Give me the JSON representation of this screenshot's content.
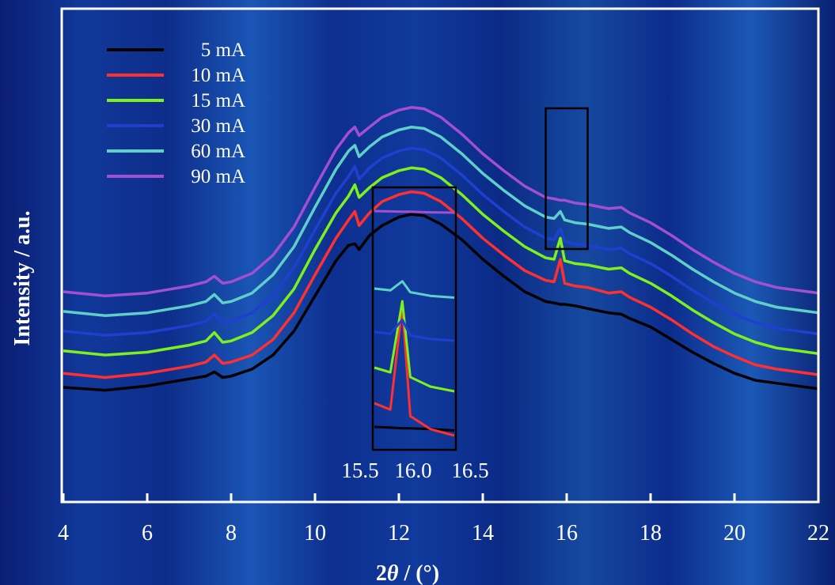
{
  "chart_data": {
    "type": "line",
    "xlabel_prefix": "2",
    "xlabel_theta": "θ",
    "xlabel_unit": " / (°)",
    "ylabel": "Intensity / a.u.",
    "xlim": [
      4,
      22
    ],
    "x_ticks": [
      4,
      6,
      8,
      10,
      12,
      14,
      16,
      18,
      20,
      22
    ],
    "x_tick_labels": [
      "4",
      "6",
      "8",
      "10",
      "12",
      "14",
      "16",
      "18",
      "20",
      "22"
    ],
    "grid": false,
    "legend_position": "top-left",
    "series": [
      {
        "name": "5 mA",
        "color": "#000000",
        "x": [
          4,
          5,
          6,
          7,
          7.4,
          7.6,
          7.8,
          8,
          8.5,
          9,
          9.5,
          10,
          10.5,
          10.8,
          10.95,
          11.05,
          11.3,
          11.6,
          12,
          12.3,
          12.6,
          13,
          13.5,
          14,
          14.5,
          15,
          15.5,
          15.7,
          15.85,
          15.95,
          16.2,
          16.5,
          17,
          17.3,
          17.5,
          18,
          18.5,
          19,
          19.5,
          20,
          20.5,
          21,
          21.5,
          22
        ],
        "y": [
          0.0,
          -0.02,
          0.01,
          0.06,
          0.08,
          0.11,
          0.07,
          0.08,
          0.13,
          0.23,
          0.4,
          0.65,
          0.9,
          1.01,
          1.02,
          0.98,
          1.08,
          1.15,
          1.21,
          1.23,
          1.22,
          1.16,
          1.05,
          0.91,
          0.79,
          0.68,
          0.61,
          0.6,
          0.59,
          0.59,
          0.58,
          0.56,
          0.53,
          0.52,
          0.49,
          0.43,
          0.34,
          0.25,
          0.17,
          0.1,
          0.05,
          0.03,
          0.01,
          -0.01
        ]
      },
      {
        "name": "10 mA",
        "color": "#ff3030",
        "x": [
          4,
          5,
          6,
          7,
          7.4,
          7.6,
          7.8,
          8,
          8.5,
          9,
          9.5,
          10,
          10.5,
          10.8,
          10.95,
          11.05,
          11.3,
          11.6,
          12,
          12.3,
          12.6,
          13,
          13.5,
          14,
          14.5,
          15,
          15.5,
          15.7,
          15.85,
          15.95,
          16.2,
          16.5,
          17,
          17.3,
          17.5,
          18,
          18.5,
          19,
          19.5,
          20,
          20.5,
          21,
          21.5,
          22
        ],
        "y": [
          0.1,
          0.07,
          0.1,
          0.15,
          0.18,
          0.23,
          0.17,
          0.18,
          0.23,
          0.34,
          0.53,
          0.8,
          1.06,
          1.19,
          1.25,
          1.15,
          1.24,
          1.32,
          1.37,
          1.39,
          1.38,
          1.32,
          1.2,
          1.06,
          0.94,
          0.83,
          0.76,
          0.75,
          0.91,
          0.74,
          0.72,
          0.71,
          0.67,
          0.68,
          0.64,
          0.57,
          0.48,
          0.38,
          0.29,
          0.22,
          0.16,
          0.13,
          0.11,
          0.09
        ]
      },
      {
        "name": "15 mA",
        "color": "#7ef01a",
        "x": [
          4,
          5,
          6,
          7,
          7.4,
          7.6,
          7.8,
          8,
          8.5,
          9,
          9.5,
          10,
          10.5,
          10.8,
          10.95,
          11.05,
          11.3,
          11.6,
          12,
          12.3,
          12.6,
          13,
          13.5,
          14,
          14.5,
          15,
          15.5,
          15.7,
          15.85,
          15.95,
          16.2,
          16.5,
          17,
          17.3,
          17.5,
          18,
          18.5,
          19,
          19.5,
          20,
          20.5,
          21,
          21.5,
          22
        ],
        "y": [
          0.26,
          0.23,
          0.25,
          0.3,
          0.33,
          0.39,
          0.32,
          0.33,
          0.39,
          0.51,
          0.7,
          0.98,
          1.24,
          1.36,
          1.44,
          1.35,
          1.42,
          1.49,
          1.54,
          1.56,
          1.55,
          1.49,
          1.37,
          1.23,
          1.11,
          1.0,
          0.92,
          0.91,
          1.06,
          0.9,
          0.88,
          0.87,
          0.84,
          0.85,
          0.81,
          0.74,
          0.65,
          0.55,
          0.46,
          0.38,
          0.32,
          0.28,
          0.26,
          0.24
        ]
      },
      {
        "name": "30 mA",
        "color": "#1f3fd0",
        "x": [
          4,
          5,
          6,
          7,
          7.4,
          7.6,
          7.8,
          8,
          8.5,
          9,
          9.5,
          10,
          10.5,
          10.8,
          10.95,
          11.05,
          11.3,
          11.6,
          12,
          12.3,
          12.6,
          13,
          13.5,
          14,
          14.5,
          15,
          15.5,
          15.7,
          15.85,
          15.95,
          16.2,
          16.5,
          17,
          17.3,
          17.5,
          18,
          18.5,
          19,
          19.5,
          20,
          20.5,
          21,
          21.5,
          22
        ],
        "y": [
          0.4,
          0.37,
          0.39,
          0.44,
          0.47,
          0.52,
          0.46,
          0.47,
          0.53,
          0.65,
          0.85,
          1.12,
          1.38,
          1.5,
          1.57,
          1.48,
          1.56,
          1.63,
          1.68,
          1.7,
          1.69,
          1.63,
          1.51,
          1.37,
          1.25,
          1.14,
          1.06,
          1.05,
          1.13,
          1.04,
          1.02,
          1.01,
          0.98,
          0.99,
          0.95,
          0.88,
          0.79,
          0.69,
          0.6,
          0.52,
          0.46,
          0.42,
          0.4,
          0.38
        ]
      },
      {
        "name": "60 mA",
        "color": "#5fd0c8",
        "x": [
          4,
          5,
          6,
          7,
          7.4,
          7.6,
          7.8,
          8,
          8.5,
          9,
          9.5,
          10,
          10.5,
          10.8,
          10.95,
          11.05,
          11.3,
          11.6,
          12,
          12.3,
          12.6,
          13,
          13.5,
          14,
          14.5,
          15,
          15.5,
          15.7,
          15.85,
          15.95,
          16.2,
          16.5,
          17,
          17.3,
          17.5,
          18,
          18.5,
          19,
          19.5,
          20,
          20.5,
          21,
          21.5,
          22
        ],
        "y": [
          0.54,
          0.51,
          0.53,
          0.58,
          0.61,
          0.66,
          0.6,
          0.61,
          0.67,
          0.8,
          1.0,
          1.28,
          1.55,
          1.68,
          1.72,
          1.64,
          1.71,
          1.78,
          1.83,
          1.85,
          1.84,
          1.78,
          1.66,
          1.52,
          1.4,
          1.29,
          1.21,
          1.2,
          1.25,
          1.19,
          1.17,
          1.16,
          1.13,
          1.14,
          1.1,
          1.03,
          0.94,
          0.84,
          0.75,
          0.67,
          0.61,
          0.57,
          0.55,
          0.53
        ]
      },
      {
        "name": "90 mA",
        "color": "#a24fd2",
        "x": [
          4,
          5,
          6,
          7,
          7.4,
          7.6,
          7.8,
          8,
          8.5,
          9,
          9.5,
          10,
          10.5,
          10.8,
          10.95,
          11.05,
          11.3,
          11.6,
          12,
          12.3,
          12.6,
          13,
          13.5,
          14,
          14.5,
          15,
          15.5,
          15.7,
          15.85,
          15.95,
          16.2,
          16.5,
          17,
          17.3,
          17.5,
          18,
          18.5,
          19,
          19.5,
          20,
          20.5,
          21,
          21.5,
          22
        ],
        "y": [
          0.68,
          0.65,
          0.67,
          0.72,
          0.75,
          0.79,
          0.74,
          0.75,
          0.81,
          0.94,
          1.14,
          1.42,
          1.69,
          1.81,
          1.85,
          1.79,
          1.85,
          1.92,
          1.97,
          1.99,
          1.98,
          1.92,
          1.8,
          1.66,
          1.54,
          1.43,
          1.35,
          1.34,
          1.33,
          1.33,
          1.31,
          1.3,
          1.27,
          1.28,
          1.24,
          1.17,
          1.08,
          0.98,
          0.89,
          0.81,
          0.75,
          0.71,
          0.69,
          0.67
        ]
      }
    ],
    "inset": {
      "source_box_xlim": [
        15.5,
        16.5
      ],
      "x_tick_labels": [
        "15.5",
        "16.0",
        "16.5"
      ]
    }
  }
}
